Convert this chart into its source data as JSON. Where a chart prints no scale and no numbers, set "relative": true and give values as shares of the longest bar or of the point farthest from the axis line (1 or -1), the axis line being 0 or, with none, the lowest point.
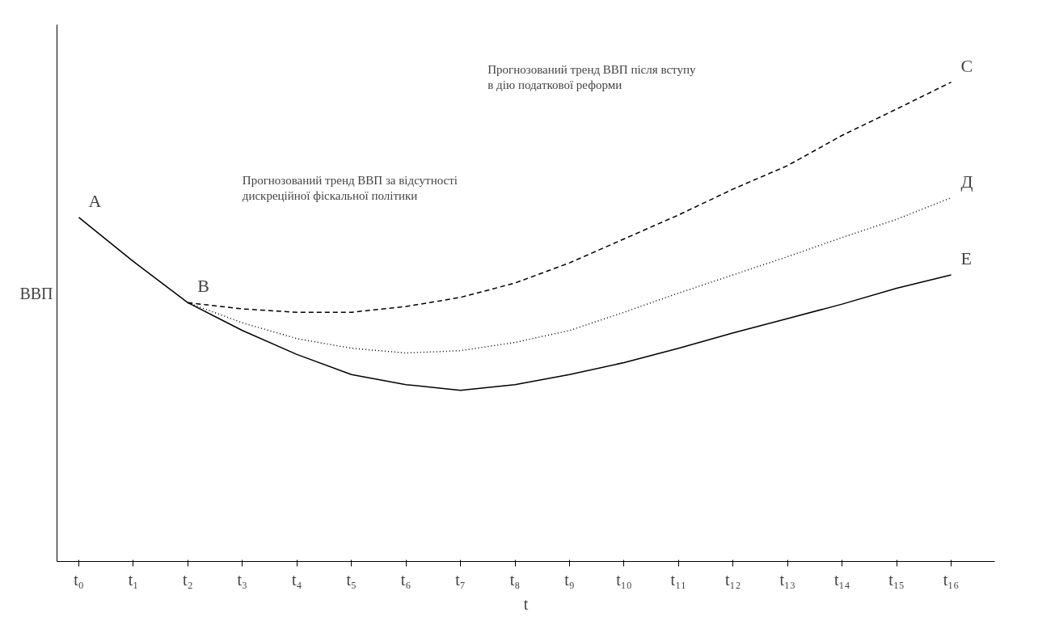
{
  "chart_data": {
    "type": "line",
    "relative": true,
    "xlabel": "t",
    "ylabel": "ВВП",
    "categories": [
      "t₀",
      "t₁",
      "t₂",
      "t₃",
      "t₄",
      "t₅",
      "t₆",
      "t₇",
      "t₈",
      "t₉",
      "t₁₀",
      "t₁₁",
      "t₁₂",
      "t₁₃",
      "t₁₄",
      "t₁₅",
      "t₁₆"
    ],
    "series": [
      {
        "color": "#000000",
        "line_style": "solid",
        "values": [
          0.718,
          0.626,
          0.54,
          0.482,
          0.432,
          0.39,
          0.369,
          0.357,
          0.369,
          0.39,
          0.415,
          0.445,
          0.477,
          0.507,
          0.537,
          0.57,
          0.598
        ]
      },
      {
        "color": "#000000",
        "line_style": "dashed",
        "values": [
          null,
          null,
          0.54,
          0.527,
          0.52,
          0.52,
          0.532,
          0.551,
          0.581,
          0.623,
          0.673,
          0.723,
          0.777,
          0.826,
          0.889,
          0.944,
          1
        ]
      },
      {
        "color": "#000000",
        "line_style": "dotted",
        "values": [
          null,
          null,
          0.54,
          0.498,
          0.465,
          0.445,
          0.435,
          0.44,
          0.457,
          0.482,
          0.52,
          0.56,
          0.598,
          0.636,
          0.676,
          0.714,
          0.759
        ]
      }
    ],
    "marker": "none",
    "grid": false,
    "annotations": [
      {
        "text": "A",
        "x": "t₀",
        "y": 0.718
      },
      {
        "text": "B",
        "x": "t₂",
        "y": 0.54
      },
      {
        "text": "C",
        "x": "t₁₆",
        "y": 1
      },
      {
        "text": "Д",
        "x": "t₁₆",
        "y": 0.759
      },
      {
        "text": "E",
        "x": "t₁₆",
        "y": 0.598
      },
      "Прогнозований тренд ВВП за відсутності дискреційної фіскальної політики",
      "Прогнозований тренд ВВП після вступу в дію податкової реформи"
    ]
  }
}
